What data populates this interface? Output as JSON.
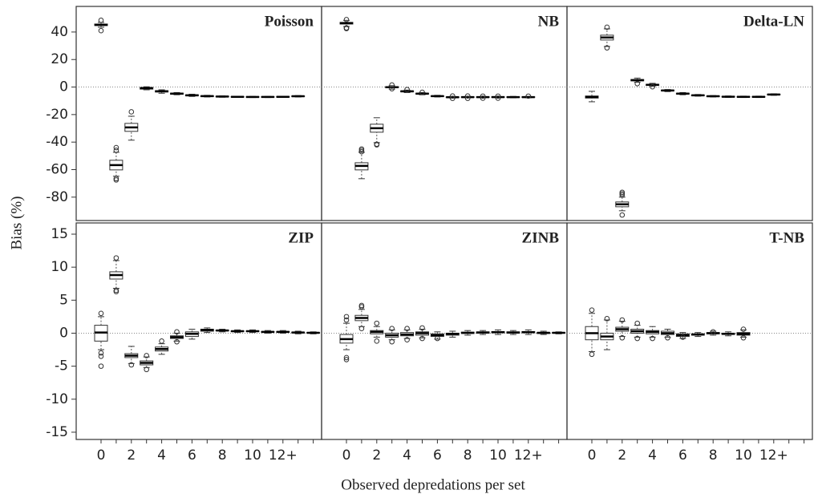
{
  "chart_data": {
    "type": "box",
    "xlabel": "Observed depredations per set",
    "ylabel": "Bias (%)",
    "categories": [
      "0",
      null,
      "2",
      null,
      "4",
      null,
      "6",
      null,
      "8",
      null,
      "10",
      null,
      "12+",
      null,
      null
    ],
    "rows": [
      {
        "ylim": [
          -97,
          58.6
        ],
        "yticks": [
          40,
          20,
          0,
          -20,
          -40,
          -60,
          -80
        ],
        "panels": [
          {
            "title": "Poisson",
            "boxes": [
              {
                "min": 43.5,
                "q1": 44.7,
                "median": 45.2,
                "q3": 45.8,
                "max": 47,
                "outliers": [
                  48.5,
                  41
                ]
              },
              {
                "min": -64.8,
                "q1": -60.2,
                "median": -56.7,
                "q3": -53.2,
                "max": -47.4,
                "outliers": [
                  -44,
                  -46,
                  -66.5,
                  -67.5
                ]
              },
              {
                "min": -38.6,
                "q1": -32.2,
                "median": -29.3,
                "q3": -26.4,
                "max": -21.2,
                "outliers": [
                  -18
                ]
              },
              {
                "min": -2,
                "q1": -1.5,
                "median": -0.8,
                "q3": -0.3,
                "max": 0.2
              },
              {
                "min": -4.5,
                "q1": -3.6,
                "median": -3.1,
                "q3": -2.6,
                "max": -2
              },
              {
                "min": -5.6,
                "q1": -5.2,
                "median": -4.8,
                "q3": -4.4,
                "max": -4
              },
              {
                "min": -6.8,
                "q1": -6.4,
                "median": -6,
                "q3": -5.6,
                "max": -5.2
              },
              {
                "min": -7.2,
                "q1": -6.9,
                "median": -6.6,
                "q3": -6.3,
                "max": -6
              },
              {
                "min": -7.4,
                "q1": -7.1,
                "median": -6.9,
                "q3": -6.7,
                "max": -6.4
              },
              {
                "min": -7.5,
                "q1": -7.3,
                "median": -7.1,
                "q3": -6.9,
                "max": -6.7
              },
              {
                "min": -7.6,
                "q1": -7.4,
                "median": -7.2,
                "q3": -7,
                "max": -6.8
              },
              {
                "min": -7.6,
                "q1": -7.4,
                "median": -7.2,
                "q3": -7,
                "max": -6.8
              },
              {
                "min": -7.5,
                "q1": -7.3,
                "median": -7.1,
                "q3": -6.9,
                "max": -6.7
              },
              {
                "min": -7.2,
                "q1": -6.9,
                "median": -6.7,
                "q3": -6.5,
                "max": -6.2
              },
              null
            ]
          },
          {
            "title": "NB",
            "boxes": [
              {
                "min": 44,
                "q1": 45.8,
                "median": 46.4,
                "q3": 47,
                "max": 48.5,
                "outliers": [
                  42.5,
                  43,
                  49
                ]
              },
              {
                "min": -66.6,
                "q1": -60.2,
                "median": -57.3,
                "q3": -55,
                "max": -47.4,
                "outliers": [
                  -45,
                  -46,
                  -47
                ]
              },
              {
                "min": -40.4,
                "q1": -32.8,
                "median": -29.9,
                "q3": -27,
                "max": -22.3,
                "outliers": [
                  -41.5,
                  -42
                ]
              },
              {
                "min": -1.5,
                "q1": -0.5,
                "median": -0.1,
                "q3": 0.3,
                "max": 1,
                "outliers": [
                  1.5,
                  -1.2
                ]
              },
              {
                "min": -4,
                "q1": -3.5,
                "median": -3.1,
                "q3": -2.7,
                "max": -2.2,
                "outliers": [
                  -1.8
                ]
              },
              {
                "min": -5.6,
                "q1": -5.1,
                "median": -4.8,
                "q3": -4.5,
                "max": -4,
                "outliers": [
                  -3.8
                ]
              },
              {
                "min": -7.2,
                "q1": -6.8,
                "median": -6.6,
                "q3": -6.4,
                "max": -6
              },
              {
                "min": -8,
                "q1": -7.6,
                "median": -7.4,
                "q3": -7.2,
                "max": -6.8,
                "outliers": [
                  -6.5,
                  -8.2
                ]
              },
              {
                "min": -7.8,
                "q1": -7.5,
                "median": -7.3,
                "q3": -7.1,
                "max": -6.8,
                "outliers": [
                  -6.5,
                  -8.2
                ]
              },
              {
                "min": -7.8,
                "q1": -7.5,
                "median": -7.3,
                "q3": -7.1,
                "max": -6.8,
                "outliers": [
                  -6.6,
                  -8.1
                ]
              },
              {
                "min": -7.8,
                "q1": -7.5,
                "median": -7.3,
                "q3": -7.1,
                "max": -6.8,
                "outliers": [
                  -6.6,
                  -8.1
                ]
              },
              {
                "min": -7.8,
                "q1": -7.5,
                "median": -7.3,
                "q3": -7.1,
                "max": -6.8
              },
              {
                "min": -7.8,
                "q1": -7.5,
                "median": -7.3,
                "q3": -7.1,
                "max": -6.8,
                "outliers": [
                  -6.6
                ]
              },
              null,
              null
            ]
          },
          {
            "title": "Delta-LN",
            "boxes": [
              {
                "min": -10.7,
                "q1": -8,
                "median": -7.2,
                "q3": -6.5,
                "max": -3.1
              },
              {
                "min": 29.5,
                "q1": 34.2,
                "median": 36,
                "q3": 37.7,
                "max": 42.3,
                "outliers": [
                  43.5,
                  28.5
                ]
              },
              {
                "min": -89.9,
                "q1": -87,
                "median": -85.2,
                "q3": -83.5,
                "max": -80,
                "outliers": [
                  -76.5,
                  -77.5,
                  -78.5,
                  -93
                ]
              },
              {
                "min": 3.5,
                "q1": 4.5,
                "median": 5,
                "q3": 5.5,
                "max": 6.5,
                "outliers": [
                  2.5
                ]
              },
              {
                "min": 0.5,
                "q1": 1.2,
                "median": 1.6,
                "q3": 2,
                "max": 2.7,
                "outliers": [
                  0.2
                ]
              },
              {
                "min": -3.3,
                "q1": -2.8,
                "median": -2.5,
                "q3": -2.2,
                "max": -1.8
              },
              {
                "min": -5.6,
                "q1": -5.1,
                "median": -4.8,
                "q3": -4.5,
                "max": -4
              },
              {
                "min": -6.6,
                "q1": -6.3,
                "median": -6,
                "q3": -5.7,
                "max": -5.4
              },
              {
                "min": -7.2,
                "q1": -6.9,
                "median": -6.7,
                "q3": -6.5,
                "max": -6.2
              },
              {
                "min": -7.5,
                "q1": -7.2,
                "median": -7,
                "q3": -6.8,
                "max": -6.5
              },
              {
                "min": -7.6,
                "q1": -7.3,
                "median": -7.1,
                "q3": -6.9,
                "max": -6.6
              },
              {
                "min": -7.6,
                "q1": -7.3,
                "median": -7.1,
                "q3": -6.9,
                "max": -6.6
              },
              {
                "min": -6,
                "q1": -5.6,
                "median": -5.4,
                "q3": -5.2,
                "max": -4.9
              },
              null,
              null
            ]
          }
        ]
      },
      {
        "ylim": [
          -16.1,
          16.7
        ],
        "yticks": [
          15,
          10,
          5,
          0,
          -5,
          -10,
          -15
        ],
        "panels": [
          {
            "title": "ZIP",
            "boxes": [
              {
                "min": -2.5,
                "q1": -1.2,
                "median": 0.1,
                "q3": 1.2,
                "max": 2.5,
                "outliers": [
                  3,
                  -3,
                  -3.5,
                  -5
                ]
              },
              {
                "min": 6.8,
                "q1": 8.2,
                "median": 8.8,
                "q3": 9.3,
                "max": 11,
                "outliers": [
                  11.4,
                  6.5,
                  6.3
                ]
              },
              {
                "min": -4.6,
                "q1": -3.7,
                "median": -3.4,
                "q3": -3.1,
                "max": -2,
                "outliers": [
                  -4.8
                ]
              },
              {
                "min": -5.2,
                "q1": -4.8,
                "median": -4.5,
                "q3": -4.2,
                "max": -3.6,
                "outliers": [
                  -3.4,
                  -5.5
                ]
              },
              {
                "min": -3.2,
                "q1": -2.7,
                "median": -2.4,
                "q3": -2.1,
                "max": -1.6,
                "outliers": [
                  -1.2
                ]
              },
              {
                "min": -1.2,
                "q1": -0.8,
                "median": -0.6,
                "q3": -0.4,
                "max": 0,
                "outliers": [
                  0.2,
                  -1.3
                ]
              },
              {
                "min": -0.9,
                "q1": -0.5,
                "median": -0.1,
                "q3": 0.2,
                "max": 0.6
              },
              {
                "min": 0.1,
                "q1": 0.3,
                "median": 0.5,
                "q3": 0.6,
                "max": 0.8
              },
              {
                "min": 0.2,
                "q1": 0.35,
                "median": 0.4,
                "q3": 0.45,
                "max": 0.6
              },
              {
                "min": 0.1,
                "q1": 0.25,
                "median": 0.3,
                "q3": 0.35,
                "max": 0.5
              },
              {
                "min": 0.1,
                "q1": 0.25,
                "median": 0.3,
                "q3": 0.35,
                "max": 0.5
              },
              {
                "min": 0,
                "q1": 0.15,
                "median": 0.2,
                "q3": 0.25,
                "max": 0.4
              },
              {
                "min": 0,
                "q1": 0.15,
                "median": 0.2,
                "q3": 0.25,
                "max": 0.4
              },
              {
                "min": -0.1,
                "q1": 0.05,
                "median": 0.1,
                "q3": 0.15,
                "max": 0.3
              },
              {
                "min": -0.1,
                "q1": 0,
                "median": 0.05,
                "q3": 0.1,
                "max": 0.2
              }
            ]
          },
          {
            "title": "ZINB",
            "boxes": [
              {
                "min": -2.5,
                "q1": -1.5,
                "median": -0.9,
                "q3": -0.2,
                "max": 1.5,
                "outliers": [
                  2,
                  2.5,
                  -3.7,
                  -4
                ]
              },
              {
                "min": 1,
                "q1": 1.9,
                "median": 2.3,
                "q3": 2.7,
                "max": 3.6,
                "outliers": [
                  4,
                  4.2,
                  0.7
                ]
              },
              {
                "min": -0.6,
                "q1": -0.1,
                "median": 0.2,
                "q3": 0.4,
                "max": 1,
                "outliers": [
                  1.5,
                  -1.2
                ]
              },
              {
                "min": -1,
                "q1": -0.6,
                "median": -0.3,
                "q3": 0,
                "max": 0.5,
                "outliers": [
                  0.7,
                  -1.3
                ]
              },
              {
                "min": -0.8,
                "q1": -0.4,
                "median": -0.2,
                "q3": 0.1,
                "max": 0.5,
                "outliers": [
                  0.7,
                  -1
                ]
              },
              {
                "min": -0.7,
                "q1": -0.3,
                "median": 0,
                "q3": 0.2,
                "max": 0.6,
                "outliers": [
                  0.8,
                  -0.8
                ]
              },
              {
                "min": -0.9,
                "q1": -0.5,
                "median": -0.3,
                "q3": -0.1,
                "max": 0.2,
                "outliers": [
                  -0.8
                ]
              },
              {
                "min": -0.6,
                "q1": -0.3,
                "median": -0.1,
                "q3": 0,
                "max": 0.3
              },
              {
                "min": -0.3,
                "q1": -0.05,
                "median": 0.05,
                "q3": 0.15,
                "max": 0.4
              },
              {
                "min": -0.2,
                "q1": 0,
                "median": 0.1,
                "q3": 0.2,
                "max": 0.4
              },
              {
                "min": -0.2,
                "q1": 0.05,
                "median": 0.15,
                "q3": 0.25,
                "max": 0.5
              },
              {
                "min": -0.2,
                "q1": 0,
                "median": 0.1,
                "q3": 0.2,
                "max": 0.4
              },
              {
                "min": -0.2,
                "q1": 0.05,
                "median": 0.15,
                "q3": 0.25,
                "max": 0.5
              },
              {
                "min": -0.2,
                "q1": -0.05,
                "median": 0.05,
                "q3": 0.1,
                "max": 0.3
              },
              {
                "min": -0.1,
                "q1": 0,
                "median": 0.05,
                "q3": 0.1,
                "max": 0.2
              }
            ]
          },
          {
            "title": "T-NB",
            "boxes": [
              {
                "min": -2.8,
                "q1": -1,
                "median": 0,
                "q3": 1,
                "max": 3,
                "outliers": [
                  3.5,
                  -3.2
                ]
              },
              {
                "min": -2.5,
                "q1": -1,
                "median": -0.5,
                "q3": 0,
                "max": 2,
                "outliers": [
                  2.2
                ]
              },
              {
                "min": -0.5,
                "q1": 0.3,
                "median": 0.6,
                "q3": 0.9,
                "max": 1.8,
                "outliers": [
                  2,
                  -0.7
                ]
              },
              {
                "min": -0.6,
                "q1": 0,
                "median": 0.3,
                "q3": 0.6,
                "max": 1.2,
                "outliers": [
                  1.5,
                  -0.8
                ]
              },
              {
                "min": -0.6,
                "q1": -0.1,
                "median": 0.2,
                "q3": 0.4,
                "max": 1,
                "outliers": [
                  -0.8
                ]
              },
              {
                "min": -0.6,
                "q1": -0.2,
                "median": 0,
                "q3": 0.3,
                "max": 0.6,
                "outliers": [
                  -0.7
                ]
              },
              {
                "min": -0.8,
                "q1": -0.5,
                "median": -0.3,
                "q3": -0.1,
                "max": 0.1,
                "outliers": [
                  -0.6
                ]
              },
              {
                "min": -0.5,
                "q1": -0.3,
                "median": -0.2,
                "q3": -0.1,
                "max": 0.1
              },
              {
                "min": -0.3,
                "q1": -0.1,
                "median": 0,
                "q3": 0.1,
                "max": 0.3,
                "outliers": [
                  0.2
                ]
              },
              {
                "min": -0.4,
                "q1": -0.2,
                "median": -0.1,
                "q3": 0,
                "max": 0.2
              },
              {
                "min": -0.6,
                "q1": -0.3,
                "median": -0.1,
                "q3": 0.1,
                "max": 0.5,
                "outliers": [
                  0.6,
                  -0.7
                ]
              },
              null,
              null,
              null,
              null
            ]
          }
        ]
      }
    ]
  }
}
